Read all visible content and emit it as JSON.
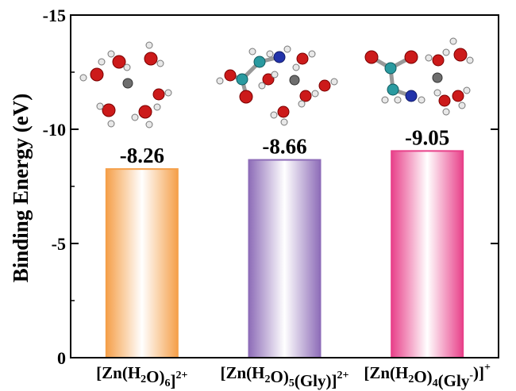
{
  "chart_data": {
    "type": "bar",
    "ylabel": "Binding Energy (eV)",
    "xlabel": "",
    "title": "",
    "ylim": [
      0,
      -15
    ],
    "yticks": [
      0,
      -5,
      -10,
      -15
    ],
    "y_inverted": true,
    "categories": [
      {
        "parts": [
          {
            "t": "[Zn(H"
          },
          {
            "t": "2",
            "sub": true
          },
          {
            "t": "O)"
          },
          {
            "t": "6",
            "sub": true
          },
          {
            "t": "]"
          },
          {
            "t": "2+",
            "sup": true
          }
        ]
      },
      {
        "parts": [
          {
            "t": "[Zn(H"
          },
          {
            "t": "2",
            "sub": true
          },
          {
            "t": "O)"
          },
          {
            "t": "5",
            "sub": true
          },
          {
            "t": "(Gly)]"
          },
          {
            "t": "2+",
            "sup": true
          }
        ]
      },
      {
        "parts": [
          {
            "t": "[Zn(H"
          },
          {
            "t": "2",
            "sub": true
          },
          {
            "t": "O)"
          },
          {
            "t": "4",
            "sub": true
          },
          {
            "t": "(Gly"
          },
          {
            "t": "-",
            "sup": true
          },
          {
            "t": ")]"
          },
          {
            "t": "+",
            "sup": true
          }
        ]
      }
    ],
    "values": [
      -8.26,
      -8.66,
      -9.05
    ],
    "value_labels": [
      "-8.26",
      "-8.66",
      "-9.05"
    ],
    "colors": [
      "#f5a04a",
      "#8e6db8",
      "#e8418a"
    ],
    "grid": false,
    "legend": "none"
  },
  "icons": [
    "zn-h2o6-molecule-icon",
    "zn-h2o5-gly-molecule-icon",
    "zn-h2o4-gly-molecule-icon"
  ]
}
